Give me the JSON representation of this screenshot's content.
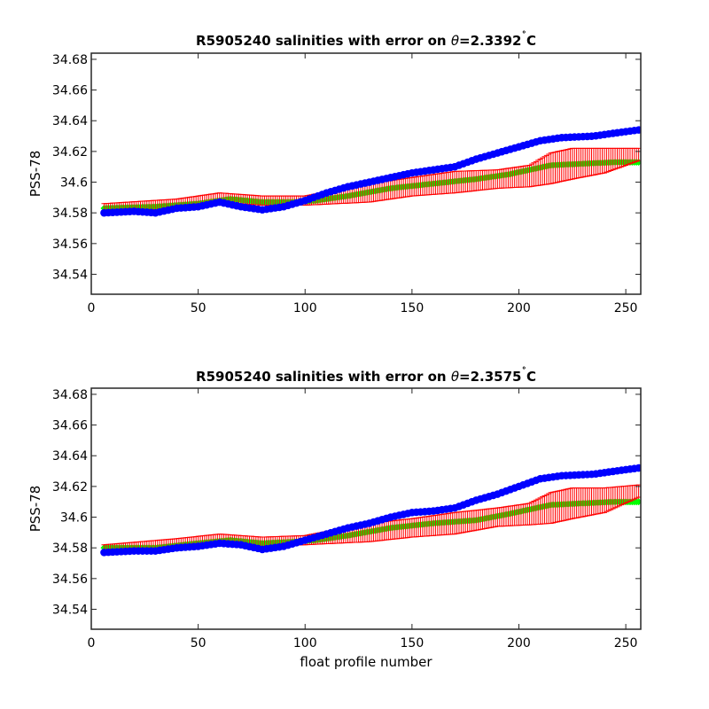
{
  "figure": {
    "xlabel": "float profile number"
  },
  "colors": {
    "float_salinity": "#0000ff",
    "mapped_salinity": "#00ff00",
    "error_bars": "#ff0000"
  },
  "chart_data": [
    {
      "type": "scatter",
      "title": "R5905240 salinities with error on θ=2.3392˚C",
      "title_prefix": "R5905240 salinities with error on ",
      "title_theta": "θ",
      "title_value": "=2.3392",
      "title_degree": "˚",
      "title_unit": "C",
      "xlabel": "",
      "ylabel": "PSS-78",
      "xlim": [
        0,
        257
      ],
      "ylim": [
        34.527,
        34.684
      ],
      "xticks": [
        0,
        50,
        100,
        150,
        200,
        250
      ],
      "xtick_labels": [
        "0",
        "50",
        "100",
        "150",
        "200",
        "250"
      ],
      "yticks": [
        34.54,
        34.56,
        34.58,
        34.6,
        34.62,
        34.64,
        34.66,
        34.68
      ],
      "ytick_labels": [
        "34.54",
        "34.56",
        "34.58",
        "34.6",
        "34.62",
        "34.64",
        "34.66",
        "34.68"
      ],
      "grid": false,
      "profile_range": [
        6,
        256
      ],
      "float_salinity_control": [
        [
          6,
          34.58
        ],
        [
          20,
          34.581
        ],
        [
          30,
          34.58
        ],
        [
          40,
          34.583
        ],
        [
          50,
          34.584
        ],
        [
          60,
          34.587
        ],
        [
          70,
          34.584
        ],
        [
          80,
          34.582
        ],
        [
          90,
          34.584
        ],
        [
          100,
          34.588
        ],
        [
          110,
          34.593
        ],
        [
          120,
          34.597
        ],
        [
          130,
          34.6
        ],
        [
          140,
          34.603
        ],
        [
          150,
          34.606
        ],
        [
          160,
          34.608
        ],
        [
          170,
          34.61
        ],
        [
          180,
          34.615
        ],
        [
          190,
          34.619
        ],
        [
          200,
          34.623
        ],
        [
          210,
          34.627
        ],
        [
          220,
          34.629
        ],
        [
          235,
          34.63
        ],
        [
          245,
          34.632
        ],
        [
          256,
          34.634
        ]
      ],
      "mapped_salinity_control": [
        [
          6,
          34.583
        ],
        [
          30,
          34.584
        ],
        [
          50,
          34.586
        ],
        [
          65,
          34.589
        ],
        [
          80,
          34.587
        ],
        [
          95,
          34.587
        ],
        [
          105,
          34.588
        ],
        [
          120,
          34.591
        ],
        [
          140,
          34.596
        ],
        [
          160,
          34.599
        ],
        [
          180,
          34.602
        ],
        [
          195,
          34.605
        ],
        [
          205,
          34.608
        ],
        [
          215,
          34.611
        ],
        [
          230,
          34.612
        ],
        [
          245,
          34.613
        ],
        [
          256,
          34.613
        ]
      ],
      "error_bar_control": [
        [
          6,
          34.583,
          0.003
        ],
        [
          40,
          34.586,
          0.003
        ],
        [
          60,
          34.59,
          0.003
        ],
        [
          80,
          34.588,
          0.003
        ],
        [
          100,
          34.588,
          0.003
        ],
        [
          130,
          34.593,
          0.006
        ],
        [
          150,
          34.597,
          0.006
        ],
        [
          170,
          34.6,
          0.007
        ],
        [
          190,
          34.602,
          0.006
        ],
        [
          205,
          34.604,
          0.007
        ],
        [
          215,
          34.609,
          0.01
        ],
        [
          225,
          34.612,
          0.01
        ],
        [
          240,
          34.614,
          0.008
        ],
        [
          256,
          34.618,
          0.004
        ]
      ]
    },
    {
      "type": "scatter",
      "title": "R5905240 salinities with error on θ=2.3575˚C",
      "title_prefix": "R5905240 salinities with error on ",
      "title_theta": "θ",
      "title_value": "=2.3575",
      "title_degree": "˚",
      "title_unit": "C",
      "xlabel": "float profile number",
      "ylabel": "PSS-78",
      "xlim": [
        0,
        257
      ],
      "ylim": [
        34.527,
        34.684
      ],
      "xticks": [
        0,
        50,
        100,
        150,
        200,
        250
      ],
      "xtick_labels": [
        "0",
        "50",
        "100",
        "150",
        "200",
        "250"
      ],
      "yticks": [
        34.54,
        34.56,
        34.58,
        34.6,
        34.62,
        34.64,
        34.66,
        34.68
      ],
      "ytick_labels": [
        "34.54",
        "34.56",
        "34.58",
        "34.6",
        "34.62",
        "34.64",
        "34.66",
        "34.68"
      ],
      "grid": false,
      "profile_range": [
        6,
        256
      ],
      "float_salinity_control": [
        [
          6,
          34.577
        ],
        [
          20,
          34.578
        ],
        [
          30,
          34.578
        ],
        [
          40,
          34.58
        ],
        [
          50,
          34.581
        ],
        [
          60,
          34.583
        ],
        [
          70,
          34.582
        ],
        [
          80,
          34.579
        ],
        [
          90,
          34.581
        ],
        [
          100,
          34.585
        ],
        [
          110,
          34.589
        ],
        [
          120,
          34.593
        ],
        [
          130,
          34.596
        ],
        [
          140,
          34.6
        ],
        [
          150,
          34.603
        ],
        [
          160,
          34.604
        ],
        [
          170,
          34.606
        ],
        [
          180,
          34.611
        ],
        [
          190,
          34.615
        ],
        [
          200,
          34.62
        ],
        [
          210,
          34.625
        ],
        [
          220,
          34.627
        ],
        [
          235,
          34.628
        ],
        [
          245,
          34.63
        ],
        [
          256,
          34.632
        ]
      ],
      "mapped_salinity_control": [
        [
          6,
          34.58
        ],
        [
          30,
          34.58
        ],
        [
          50,
          34.583
        ],
        [
          65,
          34.585
        ],
        [
          80,
          34.583
        ],
        [
          95,
          34.584
        ],
        [
          105,
          34.585
        ],
        [
          120,
          34.588
        ],
        [
          140,
          34.593
        ],
        [
          160,
          34.596
        ],
        [
          180,
          34.598
        ],
        [
          195,
          34.602
        ],
        [
          205,
          34.605
        ],
        [
          215,
          34.608
        ],
        [
          230,
          34.609
        ],
        [
          245,
          34.61
        ],
        [
          256,
          34.61
        ]
      ],
      "error_bar_control": [
        [
          6,
          34.579,
          0.003
        ],
        [
          40,
          34.583,
          0.003
        ],
        [
          60,
          34.586,
          0.003
        ],
        [
          80,
          34.584,
          0.003
        ],
        [
          100,
          34.585,
          0.003
        ],
        [
          130,
          34.59,
          0.006
        ],
        [
          150,
          34.593,
          0.006
        ],
        [
          170,
          34.596,
          0.007
        ],
        [
          190,
          34.6,
          0.006
        ],
        [
          205,
          34.602,
          0.007
        ],
        [
          215,
          34.606,
          0.01
        ],
        [
          225,
          34.609,
          0.01
        ],
        [
          240,
          34.611,
          0.008
        ],
        [
          256,
          34.617,
          0.004
        ]
      ]
    }
  ]
}
